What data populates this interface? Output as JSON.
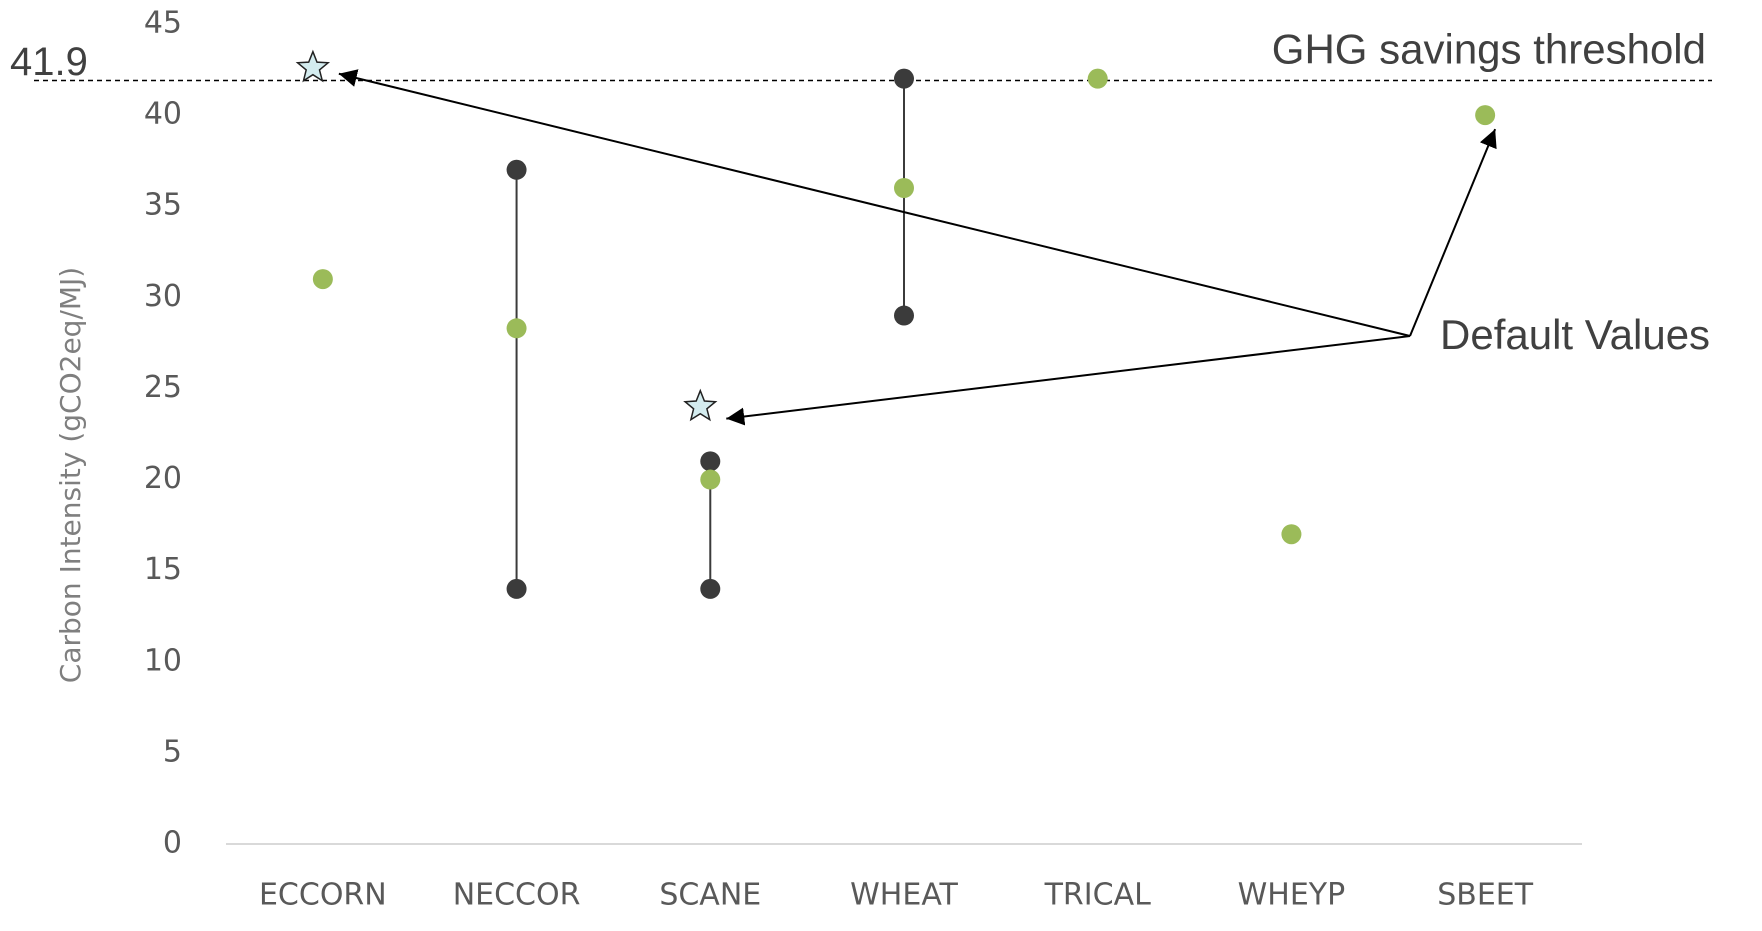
{
  "chart_data": {
    "type": "scatter",
    "y_axis_label": "Carbon Intensity (gCO2eq/MJ)",
    "categories": [
      "ECCORN",
      "NECCOR",
      "SCANE",
      "WHEAT",
      "TRICAL",
      "WHEYP",
      "SBEET"
    ],
    "series": [
      {
        "color": "#9bbb59",
        "values": [
          31,
          28.3,
          20,
          36,
          42,
          17,
          40
        ]
      }
    ],
    "ranges": {
      "color": "#3b3b3b",
      "low": [
        null,
        14,
        14,
        29,
        null,
        null,
        null
      ],
      "high": [
        null,
        37,
        21,
        42,
        null,
        null,
        null
      ]
    },
    "stars": {
      "color": "#d4ecef",
      "values": [
        42.6,
        null,
        24,
        null,
        null,
        null,
        null
      ]
    },
    "threshold": {
      "value": 41.9,
      "label": "GHG savings threshold"
    },
    "annotation": "Default Values",
    "ylim": [
      0,
      45
    ],
    "yticks": [
      0,
      5,
      10,
      15,
      20,
      25,
      30,
      35,
      40,
      45
    ],
    "grid": false
  }
}
